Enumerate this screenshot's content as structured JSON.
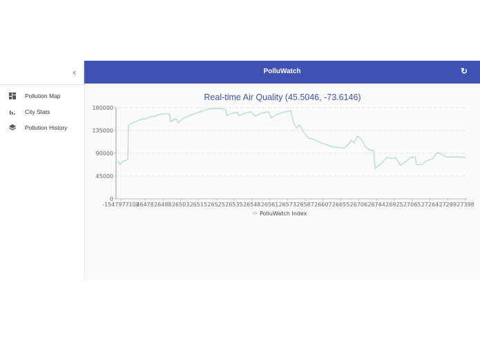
{
  "sidebar": {
    "collapse_icon": "chevron-left-icon",
    "collapse_glyph": "‹",
    "items": [
      {
        "label": "Pollution Map",
        "icon": "dashboard-icon"
      },
      {
        "label": "City Stats",
        "icon": "bar-chart-icon"
      },
      {
        "label": "Pollution History",
        "icon": "layers-icon"
      }
    ]
  },
  "appbar": {
    "title": "PolluWatch",
    "refresh_icon": "refresh-icon",
    "refresh_glyph": "↻"
  },
  "colors": {
    "primary": "#3f51b5",
    "line": "#a8dcc0",
    "grid": "#dddddd",
    "axis": "#bbbbbb"
  },
  "chart_data": {
    "type": "line",
    "title": "Real-time Air Quality (45.5046, -73.6146)",
    "xlabel": "",
    "ylabel": "",
    "ylim": [
      0,
      180000
    ],
    "yticks": [
      0,
      45000,
      90000,
      135000,
      180000
    ],
    "grid": true,
    "legend_position": "bottom",
    "categories": [
      "-1547977108",
      "26478",
      "26488",
      "26503",
      "26515",
      "26525",
      "26535",
      "26548",
      "26561",
      "26573",
      "26587",
      "26607",
      "26655",
      "26706",
      "26744",
      "26925",
      "27065",
      "27264",
      "27289",
      "27398"
    ],
    "series": [
      {
        "name": "PolluWatch Index",
        "values": [
          72000,
          146000,
          162000,
          168000,
          168000,
          175000,
          178000,
          176000,
          174000,
          175000,
          176000,
          130000,
          107000,
          102000,
          100000,
          58000,
          82000,
          68000,
          92000,
          83000
        ]
      }
    ],
    "dense_trace": [
      [
        0,
        74000
      ],
      [
        2,
        72000
      ],
      [
        4,
        67000
      ],
      [
        6,
        73000
      ],
      [
        10,
        75000
      ],
      [
        14,
        77000
      ],
      [
        15,
        145000
      ],
      [
        18,
        148000
      ],
      [
        24,
        152000
      ],
      [
        30,
        156000
      ],
      [
        34,
        158000
      ],
      [
        38,
        158000
      ],
      [
        44,
        162000
      ],
      [
        50,
        163000
      ],
      [
        54,
        165000
      ],
      [
        58,
        167000
      ],
      [
        66,
        168000
      ],
      [
        70,
        168000
      ],
      [
        72,
        152000
      ],
      [
        74,
        154000
      ],
      [
        78,
        158000
      ],
      [
        80,
        157000
      ],
      [
        82,
        150000
      ],
      [
        86,
        156000
      ],
      [
        94,
        163000
      ],
      [
        104,
        168000
      ],
      [
        112,
        172000
      ],
      [
        120,
        176000
      ],
      [
        126,
        178000
      ],
      [
        134,
        178000
      ],
      [
        142,
        178000
      ],
      [
        146,
        176000
      ],
      [
        148,
        164000
      ],
      [
        152,
        168000
      ],
      [
        162,
        171000
      ],
      [
        164,
        164000
      ],
      [
        170,
        168000
      ],
      [
        180,
        172000
      ],
      [
        186,
        163000
      ],
      [
        194,
        169000
      ],
      [
        204,
        172000
      ],
      [
        208,
        160000
      ],
      [
        214,
        166000
      ],
      [
        226,
        172000
      ],
      [
        234,
        174000
      ],
      [
        238,
        150000
      ],
      [
        242,
        140000
      ],
      [
        246,
        146000
      ],
      [
        252,
        130000
      ],
      [
        258,
        120000
      ],
      [
        264,
        118000
      ],
      [
        276,
        110000
      ],
      [
        290,
        103000
      ],
      [
        300,
        101000
      ],
      [
        306,
        100000
      ],
      [
        312,
        108000
      ],
      [
        316,
        116000
      ],
      [
        320,
        110000
      ],
      [
        324,
        124000
      ],
      [
        330,
        116000
      ],
      [
        334,
        104000
      ],
      [
        340,
        97000
      ],
      [
        346,
        95000
      ],
      [
        348,
        60000
      ],
      [
        358,
        72000
      ],
      [
        364,
        82000
      ],
      [
        370,
        80000
      ],
      [
        376,
        81000
      ],
      [
        382,
        66000
      ],
      [
        390,
        74000
      ],
      [
        396,
        82000
      ],
      [
        402,
        82000
      ],
      [
        404,
        67000
      ],
      [
        412,
        68000
      ],
      [
        416,
        74000
      ],
      [
        426,
        80000
      ],
      [
        432,
        92000
      ],
      [
        440,
        86000
      ],
      [
        446,
        82000
      ],
      [
        458,
        83000
      ],
      [
        470,
        82000
      ]
    ]
  }
}
